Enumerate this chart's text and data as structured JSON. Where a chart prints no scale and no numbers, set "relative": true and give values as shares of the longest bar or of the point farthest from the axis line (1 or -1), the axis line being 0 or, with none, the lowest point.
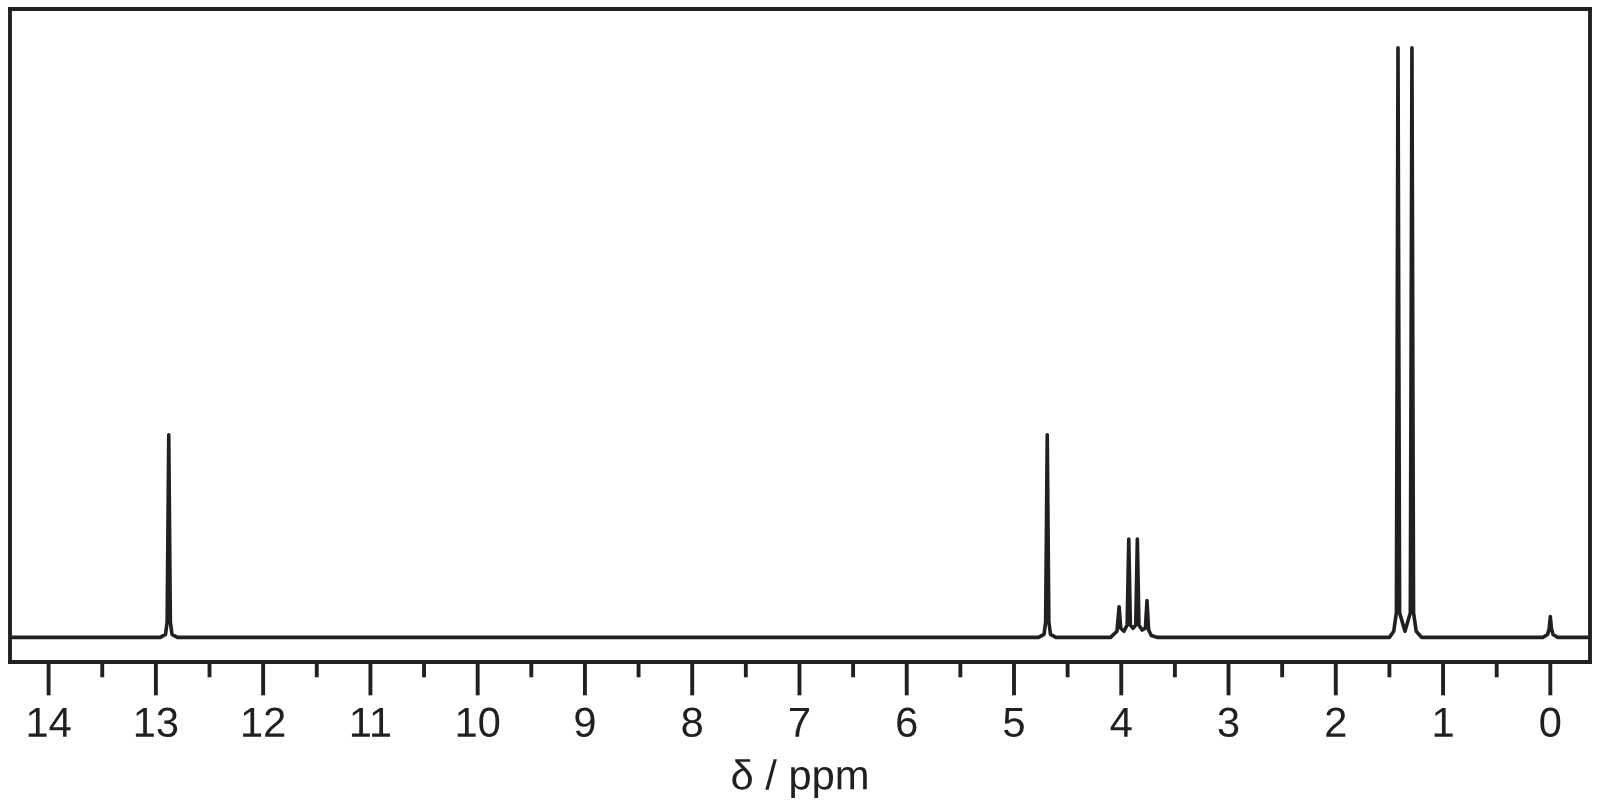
{
  "chart_data": {
    "type": "line",
    "xlabel": "δ / ppm",
    "relative": true,
    "tick_labels": "x",
    "xlim": [
      14.36,
      -0.37
    ],
    "xticks": [
      14,
      {
        "value": 13.5,
        "label": null
      },
      13,
      {
        "value": 12.5,
        "label": null
      },
      12,
      {
        "value": 11.5,
        "label": null
      },
      11,
      {
        "value": 10.5,
        "label": null
      },
      10,
      {
        "value": 9.5,
        "label": null
      },
      9,
      {
        "value": 8.5,
        "label": null
      },
      8,
      {
        "value": 7.5,
        "label": null
      },
      7,
      {
        "value": 6.5,
        "label": null
      },
      6,
      {
        "value": 5.5,
        "label": null
      },
      5,
      {
        "value": 4.5,
        "label": null
      },
      4,
      {
        "value": 3.5,
        "label": null
      },
      3,
      {
        "value": 2.5,
        "label": null
      },
      2,
      {
        "value": 1.5,
        "label": null
      },
      1,
      {
        "value": 0.5,
        "label": null
      },
      0
    ],
    "series": [
      {
        "color": "#231f20",
        "x": [
          14.36,
          12.96,
          12.91,
          12.895,
          12.88,
          12.865,
          12.85,
          12.8,
          4.77,
          4.72,
          4.705,
          4.69,
          4.675,
          4.66,
          4.61,
          4.1,
          4.04,
          4.02,
          4.005,
          3.975,
          3.945,
          3.93,
          3.915,
          3.89,
          3.865,
          3.85,
          3.835,
          3.805,
          3.775,
          3.76,
          3.745,
          3.72,
          3.66,
          1.5,
          1.46,
          1.435,
          1.42,
          1.405,
          1.355,
          1.305,
          1.29,
          1.275,
          1.25,
          1.2,
          0.07,
          0.025,
          0.01,
          0.0,
          -0.01,
          -0.025,
          -0.07,
          -0.37
        ],
        "values": [
          0.04,
          0.04,
          0.045,
          0.065,
          0.37,
          0.065,
          0.045,
          0.04,
          0.04,
          0.045,
          0.065,
          0.37,
          0.065,
          0.045,
          0.04,
          0.04,
          0.05,
          0.09,
          0.055,
          0.05,
          0.06,
          0.2,
          0.06,
          0.055,
          0.06,
          0.2,
          0.06,
          0.052,
          0.055,
          0.1,
          0.052,
          0.043,
          0.04,
          0.04,
          0.05,
          0.08,
          1.0,
          0.08,
          0.05,
          0.08,
          1.0,
          0.08,
          0.05,
          0.04,
          0.04,
          0.045,
          0.055,
          0.074,
          0.055,
          0.045,
          0.04,
          0.04
        ]
      }
    ]
  }
}
